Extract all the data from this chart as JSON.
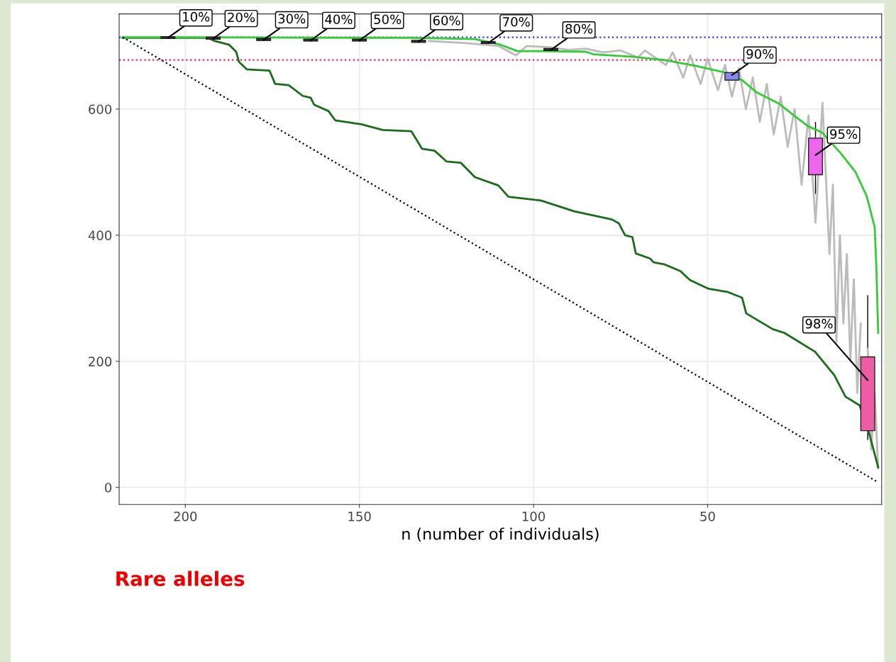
{
  "chart_data": {
    "type": "line",
    "xlabel": "n (number of individuals)",
    "xlim": [
      219,
      0
    ],
    "ylim": [
      -27,
      751
    ],
    "xticks": [
      200,
      150,
      100,
      50
    ],
    "yticks": [
      0,
      200,
      400,
      600
    ],
    "grid": true,
    "ref_lines": [
      {
        "axis": "y",
        "value": 714,
        "color": "#3333ff",
        "line_style": "dotted"
      },
      {
        "axis": "y",
        "value": 678,
        "color": "#ee2255",
        "line_style": "dotted"
      }
    ],
    "series": [
      {
        "color": "#bbbbbb",
        "x": [
          130,
          120,
          110,
          105,
          102,
          95,
          90,
          85,
          80,
          75,
          70,
          68,
          62,
          60,
          57,
          55,
          52,
          50,
          47,
          45,
          43,
          41,
          39,
          37,
          35,
          33,
          31,
          29,
          27,
          25,
          23,
          21,
          19,
          17,
          15,
          14,
          13,
          12,
          11,
          10,
          9,
          8,
          7,
          6,
          5,
          4,
          3,
          2,
          1
        ],
        "values": [
          708,
          705,
          700,
          685,
          700,
          698,
          694,
          696,
          690,
          693,
          682,
          693,
          670,
          690,
          650,
          685,
          640,
          680,
          630,
          670,
          620,
          665,
          600,
          650,
          580,
          640,
          560,
          620,
          540,
          600,
          480,
          590,
          420,
          610,
          370,
          480,
          230,
          400,
          260,
          370,
          200,
          330,
          150,
          260,
          null,
          220,
          60,
          150,
          30
        ]
      },
      {
        "color": "#1a6b1a",
        "x": [
          218,
          193.5,
          191.5,
          187.4,
          185.4,
          184.6,
          182.3,
          175.8,
          174.2,
          170.3,
          166.3,
          164,
          163,
          158.9,
          156.9,
          149.4,
          143.3,
          135.1,
          132,
          128.4,
          125,
          120.9,
          116.8,
          110.1,
          107.2,
          97.9,
          88.3,
          77.5,
          75.5,
          73.7,
          71.6,
          70.6,
          66.5,
          65.5,
          62.5,
          57.8,
          55.1,
          49.7,
          44.2,
          40.1,
          38.9,
          31.3,
          27.9,
          19.1,
          13.6,
          10.4,
          6.3,
          3.5,
          1
        ],
        "values": [
          713,
          713,
          708,
          702,
          691,
          675,
          663,
          661,
          640,
          638,
          621,
          618,
          607,
          597,
          582,
          576,
          567,
          565,
          537,
          534,
          517,
          515,
          492,
          479,
          461,
          455,
          438,
          425,
          419,
          400,
          397,
          371,
          363,
          357,
          354,
          343,
          329,
          315,
          310,
          301,
          276,
          251,
          245,
          215,
          178,
          144,
          130,
          84,
          32
        ]
      },
      {
        "color": "#33cc33",
        "x": [
          218,
          135,
          116.8,
          110,
          104.6,
          99.9,
          84.9,
          82.8,
          71.4,
          62.5,
          53.7,
          45,
          40.1,
          36,
          29.3,
          25.2,
          21.2,
          17.1,
          11.6,
          7.5,
          4.3,
          2,
          1.5,
          1
        ],
        "values": [
          714,
          713,
          711,
          703,
          692,
          692,
          691,
          687,
          683,
          678,
          669,
          658,
          646,
          627,
          608,
          590,
          573,
          563,
          529,
          500,
          462,
          413,
          346,
          245
        ]
      },
      {
        "color": "#000000",
        "line_style": "dotted",
        "x": [
          218,
          1
        ],
        "values": [
          714,
          8
        ]
      },
      {
        "type": "box",
        "x": [
          205,
          192,
          177.5,
          164,
          150,
          133,
          113,
          95,
          43,
          19,
          4
        ],
        "colors": [
          "#333333",
          "#333333",
          "#333333",
          "#333333",
          "#333333",
          "#333333",
          "#333333",
          "#333333",
          "#8888ee",
          "#ee66ee",
          "#ee5ca8"
        ],
        "boxes": [
          {
            "low": 712,
            "q1": 712,
            "median": 713,
            "q3": 715,
            "high": 715
          },
          {
            "low": 711,
            "q1": 711,
            "median": 712,
            "q3": 714,
            "high": 714
          },
          {
            "low": 709,
            "q1": 709,
            "median": 710,
            "q3": 712,
            "high": 712
          },
          {
            "low": 708,
            "q1": 708,
            "median": 709,
            "q3": 711,
            "high": 711
          },
          {
            "low": 708,
            "q1": 708,
            "median": 709,
            "q3": 711,
            "high": 711
          },
          {
            "low": 706,
            "q1": 706,
            "median": 707,
            "q3": 709,
            "high": 709
          },
          {
            "low": 704,
            "q1": 704,
            "median": 705,
            "q3": 707,
            "high": 707
          },
          {
            "low": 693,
            "q1": 693,
            "median": 694,
            "q3": 696,
            "high": 696
          },
          {
            "low": 646,
            "q1": 646,
            "median": 654,
            "q3": 658,
            "high": 658
          },
          {
            "low": 466,
            "q1": 496,
            "median": 527,
            "q3": 554,
            "high": 579
          },
          {
            "low": 76,
            "q1": 90,
            "median": 107,
            "q3": 207,
            "high": 304
          }
        ]
      }
    ],
    "annotations": [
      {
        "text": "10%",
        "x": 205,
        "y": 713
      },
      {
        "text": "20%",
        "x": 192,
        "y": 712
      },
      {
        "text": "30%",
        "x": 177.5,
        "y": 710
      },
      {
        "text": "40%",
        "x": 164,
        "y": 709
      },
      {
        "text": "50%",
        "x": 150,
        "y": 709
      },
      {
        "text": "60%",
        "x": 133,
        "y": 707
      },
      {
        "text": "70%",
        "x": 113,
        "y": 705
      },
      {
        "text": "80%",
        "x": 95,
        "y": 694
      },
      {
        "text": "90%",
        "x": 43,
        "y": 654
      },
      {
        "text": "95%",
        "x": 19,
        "y": 527
      },
      {
        "text": "98%",
        "x": 4,
        "y": 170
      },
      "Rare alleles"
    ]
  }
}
